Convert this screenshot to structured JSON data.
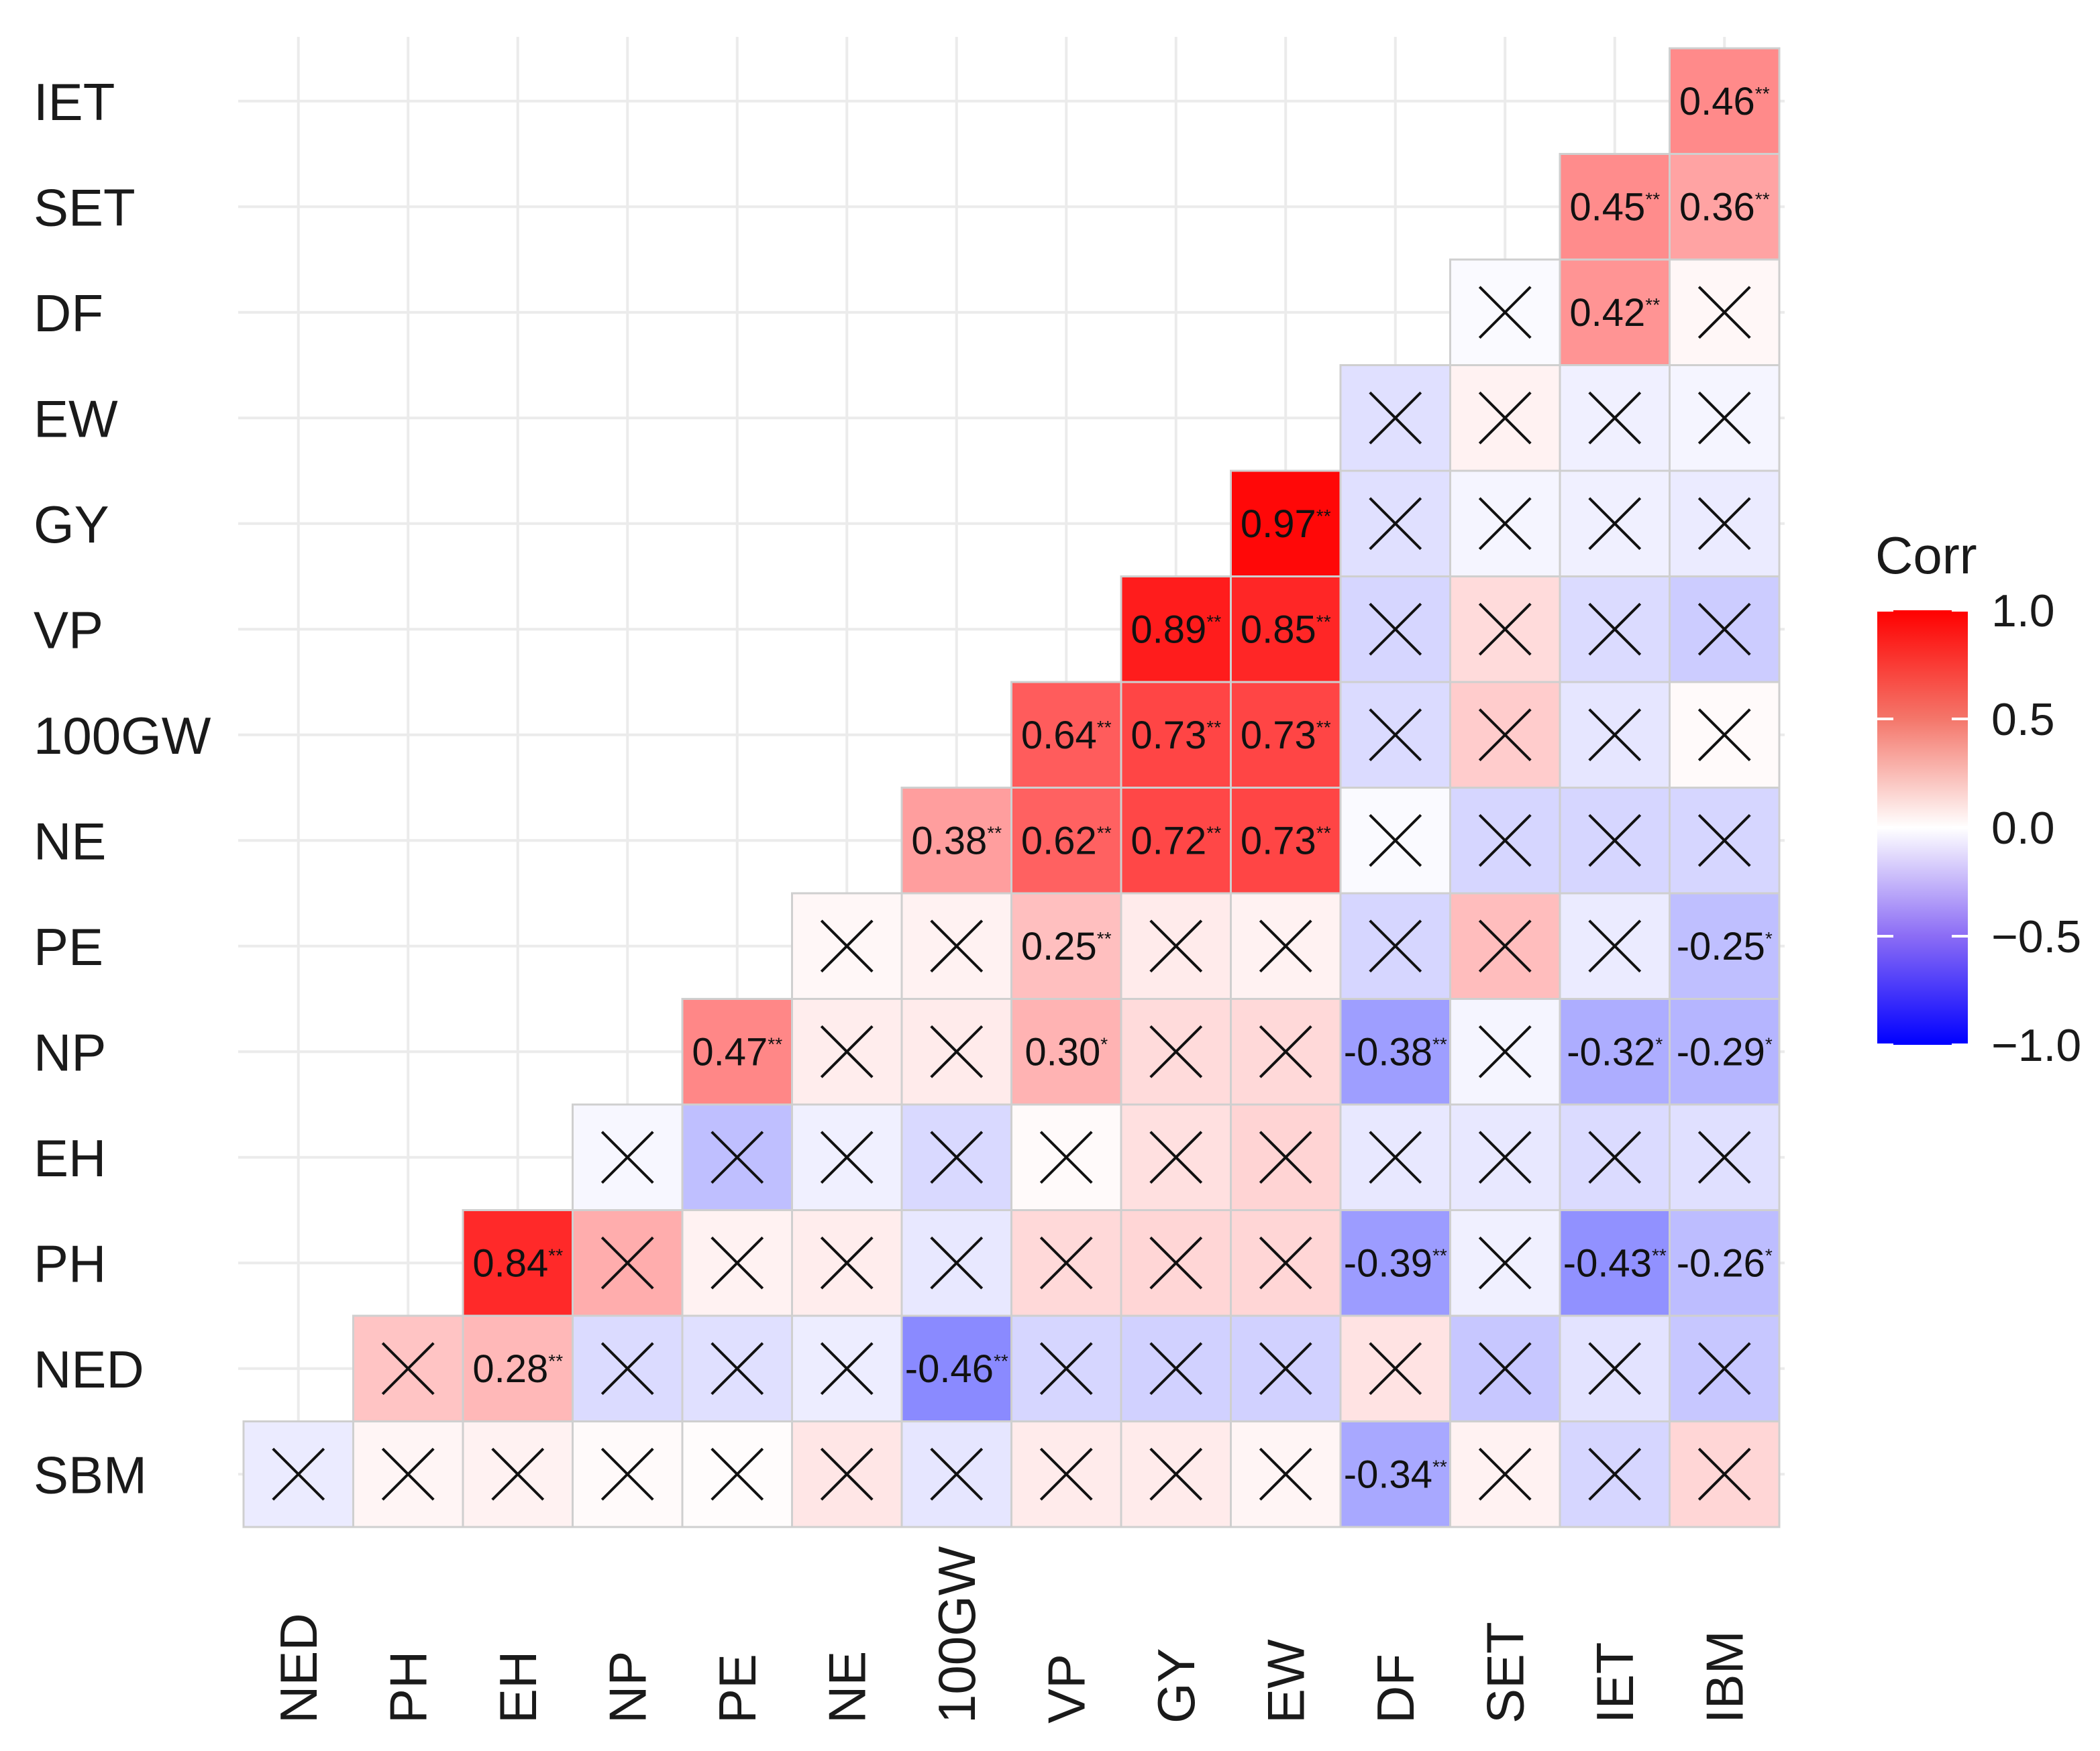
{
  "chart_data": {
    "type": "heatmap",
    "title": "",
    "rows": [
      "IET",
      "SET",
      "DF",
      "EW",
      "GY",
      "VP",
      "100GW",
      "NE",
      "PE",
      "NP",
      "EH",
      "PH",
      "NED",
      "SBM"
    ],
    "cols": [
      "NED",
      "PH",
      "EH",
      "NP",
      "PE",
      "NE",
      "100GW",
      "VP",
      "GY",
      "EW",
      "DF",
      "SET",
      "IET",
      "IBM"
    ],
    "values": [
      [
        null,
        null,
        null,
        null,
        null,
        null,
        null,
        null,
        null,
        null,
        null,
        null,
        null,
        0.46
      ],
      [
        null,
        null,
        null,
        null,
        null,
        null,
        null,
        null,
        null,
        null,
        null,
        null,
        0.45,
        0.36
      ],
      [
        null,
        null,
        null,
        null,
        null,
        null,
        null,
        null,
        null,
        null,
        null,
        -0.02,
        0.42,
        0.03
      ],
      [
        null,
        null,
        null,
        null,
        null,
        null,
        null,
        null,
        null,
        null,
        -0.12,
        0.05,
        -0.06,
        -0.04
      ],
      [
        null,
        null,
        null,
        null,
        null,
        null,
        null,
        null,
        null,
        0.97,
        -0.12,
        -0.04,
        -0.06,
        -0.08
      ],
      [
        null,
        null,
        null,
        null,
        null,
        null,
        null,
        null,
        0.89,
        0.85,
        -0.16,
        0.14,
        -0.14,
        -0.2
      ],
      [
        null,
        null,
        null,
        null,
        null,
        null,
        null,
        0.64,
        0.73,
        0.73,
        -0.14,
        0.2,
        -0.1,
        0.02
      ],
      [
        null,
        null,
        null,
        null,
        null,
        null,
        0.38,
        0.62,
        0.72,
        0.73,
        -0.02,
        -0.16,
        -0.16,
        -0.16
      ],
      [
        null,
        null,
        null,
        null,
        null,
        0.03,
        0.05,
        0.25,
        0.08,
        0.05,
        -0.16,
        0.26,
        -0.08,
        -0.25
      ],
      [
        null,
        null,
        null,
        null,
        0.47,
        0.07,
        0.08,
        0.3,
        0.14,
        0.15,
        -0.38,
        -0.04,
        -0.32,
        -0.29
      ],
      [
        null,
        null,
        null,
        -0.03,
        -0.25,
        -0.06,
        -0.15,
        0.02,
        0.12,
        0.17,
        -0.09,
        -0.09,
        -0.14,
        -0.12
      ],
      [
        null,
        null,
        0.84,
        0.32,
        0.05,
        0.07,
        -0.09,
        0.15,
        0.16,
        0.16,
        -0.39,
        -0.06,
        -0.43,
        -0.26
      ],
      [
        null,
        0.23,
        0.28,
        -0.14,
        -0.12,
        -0.07,
        -0.46,
        -0.16,
        -0.18,
        -0.18,
        0.11,
        -0.22,
        -0.11,
        -0.22
      ],
      [
        -0.08,
        0.04,
        0.05,
        0.02,
        0.01,
        0.1,
        -0.1,
        0.08,
        0.08,
        0.04,
        -0.34,
        0.05,
        -0.16,
        0.16
      ]
    ],
    "labels": [
      [
        null,
        null,
        null,
        null,
        null,
        null,
        null,
        null,
        null,
        null,
        null,
        null,
        null,
        {
          "t": "0.46",
          "s": "**"
        }
      ],
      [
        null,
        null,
        null,
        null,
        null,
        null,
        null,
        null,
        null,
        null,
        null,
        null,
        {
          "t": "0.45",
          "s": "**"
        },
        {
          "t": "0.36",
          "s": "**"
        }
      ],
      [
        null,
        null,
        null,
        null,
        null,
        null,
        null,
        null,
        null,
        null,
        null,
        null,
        {
          "t": "0.42",
          "s": "**"
        },
        null
      ],
      [
        null,
        null,
        null,
        null,
        null,
        null,
        null,
        null,
        null,
        null,
        null,
        null,
        null,
        null
      ],
      [
        null,
        null,
        null,
        null,
        null,
        null,
        null,
        null,
        null,
        {
          "t": "0.97",
          "s": "**"
        },
        null,
        null,
        null,
        null
      ],
      [
        null,
        null,
        null,
        null,
        null,
        null,
        null,
        null,
        {
          "t": "0.89",
          "s": "**"
        },
        {
          "t": "0.85",
          "s": "**"
        },
        null,
        null,
        null,
        null
      ],
      [
        null,
        null,
        null,
        null,
        null,
        null,
        null,
        {
          "t": "0.64",
          "s": "**"
        },
        {
          "t": "0.73",
          "s": "**"
        },
        {
          "t": "0.73",
          "s": "**"
        },
        null,
        null,
        null,
        null
      ],
      [
        null,
        null,
        null,
        null,
        null,
        null,
        {
          "t": "0.38",
          "s": "**"
        },
        {
          "t": "0.62",
          "s": "**"
        },
        {
          "t": "0.72",
          "s": "**"
        },
        {
          "t": "0.73",
          "s": "**"
        },
        null,
        null,
        null,
        null
      ],
      [
        null,
        null,
        null,
        null,
        null,
        null,
        null,
        {
          "t": "0.25",
          "s": "**"
        },
        null,
        null,
        null,
        null,
        null,
        {
          "t": "-0.25",
          "s": "*"
        }
      ],
      [
        null,
        null,
        null,
        null,
        {
          "t": "0.47",
          "s": "**"
        },
        null,
        null,
        {
          "t": "0.30",
          "s": "*"
        },
        null,
        null,
        {
          "t": "-0.38",
          "s": "**"
        },
        null,
        {
          "t": "-0.32",
          "s": "*"
        },
        {
          "t": "-0.29",
          "s": "*"
        }
      ],
      [
        null,
        null,
        null,
        null,
        null,
        null,
        null,
        null,
        null,
        null,
        null,
        null,
        null,
        null
      ],
      [
        null,
        null,
        {
          "t": "0.84",
          "s": "**"
        },
        null,
        null,
        null,
        null,
        null,
        null,
        null,
        {
          "t": "-0.39",
          "s": "**"
        },
        null,
        {
          "t": "-0.43",
          "s": "**"
        },
        {
          "t": "-0.26",
          "s": "*"
        }
      ],
      [
        null,
        null,
        {
          "t": "0.28",
          "s": "**"
        },
        null,
        null,
        null,
        {
          "t": "-0.46",
          "s": "**"
        },
        null,
        null,
        null,
        null,
        null,
        null,
        null
      ],
      [
        null,
        null,
        null,
        null,
        null,
        null,
        null,
        null,
        null,
        null,
        {
          "t": "-0.34",
          "s": "**"
        },
        null,
        null,
        null
      ]
    ],
    "legend": {
      "title": "Corr",
      "ticks": [
        {
          "v": 1.0,
          "label": "1.0"
        },
        {
          "v": 0.5,
          "label": "0.5"
        },
        {
          "v": 0.0,
          "label": "0.0"
        },
        {
          "v": -0.5,
          "label": "−0.5"
        },
        {
          "v": -1.0,
          "label": "−1.0"
        }
      ],
      "range": [
        -1,
        1
      ]
    },
    "colors": {
      "high": "#ff0000",
      "mid": "#ffffff",
      "low": "#0000ff",
      "cell_border": "#cfcfcf",
      "grid": "#ebebeb",
      "cross": "#111111"
    },
    "non_significant_marker": "cross"
  }
}
